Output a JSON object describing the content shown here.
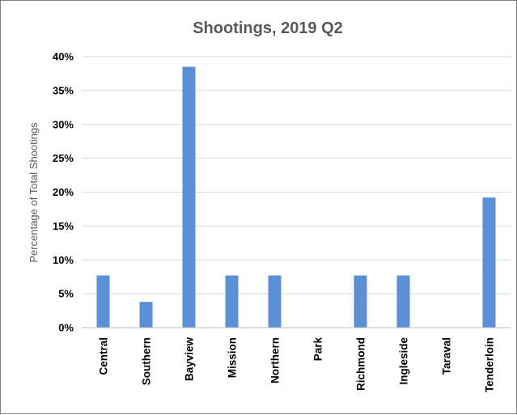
{
  "chart_data": {
    "type": "bar",
    "title": "Shootings,  2019 Q2",
    "xlabel": "",
    "ylabel": "Percentage of Total Shootings",
    "categories": [
      "Central",
      "Southern",
      "Bayview",
      "Mission",
      "Northern",
      "Park",
      "Richmond",
      "Ingleside",
      "Taraval",
      "Tenderloin"
    ],
    "values": [
      7.7,
      3.8,
      38.5,
      7.7,
      7.7,
      0,
      7.7,
      7.7,
      0,
      19.2
    ],
    "ylim": [
      0,
      40
    ],
    "yticks": [
      0,
      5,
      10,
      15,
      20,
      25,
      30,
      35,
      40
    ],
    "ytick_labels": [
      "0%",
      "5%",
      "10%",
      "15%",
      "20%",
      "25%",
      "30%",
      "35%",
      "40%"
    ],
    "grid": true,
    "legend": "none",
    "colors": {
      "bar": "#5b8fd6",
      "grid": "#d9d9d9",
      "axis": "#bfbfbf"
    }
  }
}
